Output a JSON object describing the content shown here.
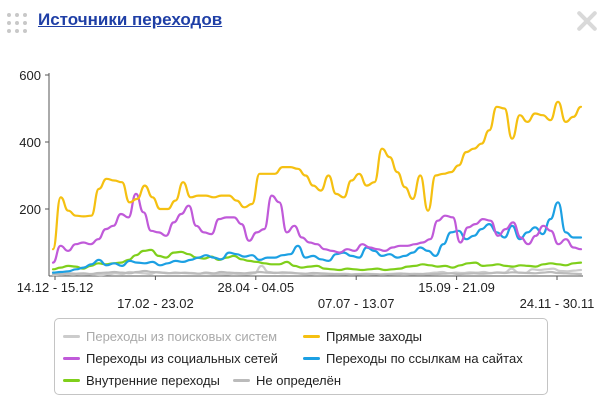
{
  "header": {
    "title": "Источники переходов",
    "drag_icon": "drag-dots-icon",
    "close_icon": "close-icon"
  },
  "chart_data": {
    "type": "line",
    "ylim": [
      0,
      600
    ],
    "y_ticks": [
      200,
      400,
      600
    ],
    "x_tick_labels": [
      "14.12 - 15.12",
      "17.02 - 23.02",
      "28.04 - 04.05",
      "07.07 - 13.07",
      "15.09 - 21.09",
      "24.11 - 30.11"
    ],
    "grid": false,
    "legend_position": "bottom",
    "series": [
      {
        "name": "Переходы из поисковых систем",
        "color": "#cccccc",
        "muted": true,
        "values": [
          3,
          4,
          5,
          4,
          6,
          5,
          4,
          3,
          5,
          8,
          6,
          12,
          10,
          8,
          6,
          12,
          10,
          8,
          8,
          10,
          9,
          7,
          8,
          6,
          6,
          5,
          7,
          6,
          5,
          8,
          30,
          12,
          10,
          8,
          9,
          8,
          6,
          5,
          7,
          6,
          5,
          6,
          7,
          5,
          6,
          7,
          6,
          5,
          6,
          7,
          8,
          6,
          7,
          6,
          8,
          10,
          12,
          8,
          10,
          9,
          11,
          10,
          12,
          9,
          11,
          10,
          22,
          10,
          9,
          20,
          18,
          20,
          22,
          15,
          14,
          16,
          18
        ]
      },
      {
        "name": "Прямые заходы",
        "color": "#f5c011",
        "muted": false,
        "values": [
          80,
          235,
          195,
          180,
          178,
          180,
          260,
          290,
          285,
          280,
          220,
          230,
          270,
          235,
          200,
          200,
          225,
          280,
          235,
          240,
          240,
          235,
          240,
          240,
          225,
          205,
          215,
          305,
          305,
          305,
          325,
          325,
          320,
          300,
          270,
          255,
          300,
          245,
          235,
          285,
          305,
          270,
          280,
          380,
          355,
          310,
          265,
          230,
          300,
          195,
          300,
          305,
          310,
          330,
          370,
          380,
          395,
          435,
          505,
          500,
          410,
          480,
          460,
          485,
          480,
          465,
          520,
          460,
          475,
          505
        ]
      },
      {
        "name": "Переходы из социальных сетей",
        "color": "#c05ad9",
        "muted": false,
        "values": [
          40,
          90,
          75,
          95,
          100,
          95,
          110,
          140,
          150,
          185,
          175,
          245,
          190,
          135,
          130,
          120,
          160,
          185,
          210,
          150,
          130,
          125,
          170,
          175,
          175,
          155,
          105,
          130,
          140,
          240,
          220,
          130,
          150,
          115,
          100,
          95,
          80,
          75,
          70,
          80,
          75,
          95,
          85,
          80,
          75,
          85,
          90,
          90,
          95,
          100,
          110,
          165,
          180,
          175,
          100,
          145,
          155,
          170,
          165,
          120,
          140,
          160,
          115,
          95,
          120,
          150,
          135,
          95,
          110,
          85,
          80
        ]
      },
      {
        "name": "Переходы по ссылкам на сайтах",
        "color": "#1ca0e3",
        "muted": false,
        "values": [
          10,
          12,
          14,
          20,
          25,
          35,
          48,
          32,
          38,
          30,
          45,
          40,
          38,
          42,
          32,
          38,
          45,
          42,
          48,
          55,
          62,
          55,
          50,
          70,
          65,
          58,
          62,
          48,
          55,
          55,
          62,
          65,
          90,
          55,
          60,
          50,
          45,
          65,
          70,
          60,
          55,
          85,
          75,
          60,
          65,
          55,
          60,
          70,
          85,
          75,
          60,
          95,
          130,
          135,
          110,
          120,
          140,
          155,
          130,
          115,
          150,
          110,
          130,
          145,
          125,
          170,
          220,
          130,
          115,
          115
        ]
      },
      {
        "name": "Внутренние переходы",
        "color": "#7fcf1b",
        "muted": false,
        "values": [
          20,
          25,
          30,
          28,
          22,
          30,
          38,
          35,
          38,
          40,
          48,
          62,
          75,
          78,
          60,
          55,
          70,
          72,
          65,
          55,
          52,
          58,
          48,
          55,
          60,
          50,
          45,
          42,
          38,
          35,
          35,
          42,
          30,
          25,
          28,
          30,
          22,
          20,
          18,
          22,
          20,
          18,
          20,
          22,
          18,
          20,
          22,
          28,
          30,
          35,
          32,
          28,
          30,
          25,
          32,
          38,
          40,
          30,
          32,
          35,
          30,
          28,
          32,
          30,
          28,
          35,
          38,
          35,
          32,
          38,
          40
        ]
      },
      {
        "name": "Не определён",
        "color": "#bbbbbb",
        "muted": false,
        "values": [
          5,
          6,
          8,
          7,
          8,
          6,
          9,
          10,
          12,
          10,
          8,
          12,
          15,
          12,
          10,
          8,
          10,
          9,
          8,
          7,
          10,
          8,
          12,
          10,
          9,
          8,
          10,
          12,
          10,
          9,
          11,
          10,
          8,
          7,
          9,
          8,
          7,
          6,
          5,
          4,
          5,
          6,
          5,
          4,
          5,
          6,
          7,
          5,
          6,
          5,
          6,
          7,
          8,
          6,
          7,
          8,
          7,
          8,
          10,
          9,
          11,
          10,
          9,
          8,
          10,
          12,
          9,
          8,
          7,
          6
        ]
      }
    ]
  },
  "legend": [
    {
      "label": "Переходы из поисковых систем",
      "color": "#cccccc",
      "muted": true
    },
    {
      "label": "Прямые заходы",
      "color": "#f5c011",
      "muted": false
    },
    {
      "label": "Переходы из социальных сетей",
      "color": "#c05ad9",
      "muted": false
    },
    {
      "label": "Переходы по ссылкам на сайтах",
      "color": "#1ca0e3",
      "muted": false
    },
    {
      "label": "Внутренние переходы",
      "color": "#7fcf1b",
      "muted": false
    },
    {
      "label": "Не определён",
      "color": "#bbbbbb",
      "muted": false
    }
  ]
}
